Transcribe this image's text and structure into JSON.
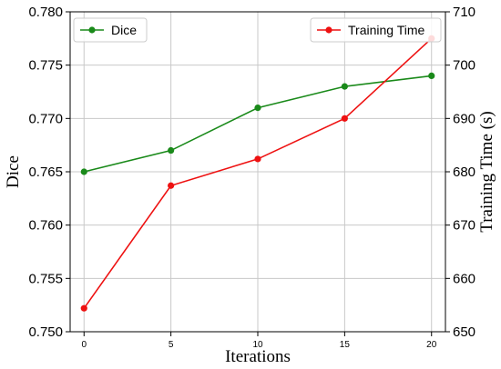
{
  "chart_data": {
    "type": "line",
    "xlabel": "Iterations",
    "ylabel_left": "Dice",
    "ylabel_right": "Training Time (s)",
    "x": [
      0,
      5,
      10,
      15,
      20
    ],
    "xticks": [
      "0",
      "5",
      "10",
      "15",
      "20"
    ],
    "xlim": [
      -0.8,
      20.8
    ],
    "yleft_lim": [
      0.75,
      0.78
    ],
    "yleft_ticks": [
      "0.750",
      "0.755",
      "0.760",
      "0.765",
      "0.770",
      "0.775",
      "0.780"
    ],
    "yright_lim": [
      650,
      710
    ],
    "yright_ticks": [
      "650",
      "660",
      "670",
      "680",
      "690",
      "700",
      "710"
    ],
    "grid": true,
    "series": [
      {
        "name": "Dice",
        "axis": "left",
        "color": "#1a8a1a",
        "values": [
          0.765,
          0.767,
          0.771,
          0.773,
          0.774
        ],
        "legend": "top-left"
      },
      {
        "name": "Training Time",
        "axis": "right",
        "color": "#ee1111",
        "values": [
          654.4,
          677.4,
          682.4,
          690.0,
          705.0
        ],
        "legend": "top-right"
      }
    ]
  }
}
